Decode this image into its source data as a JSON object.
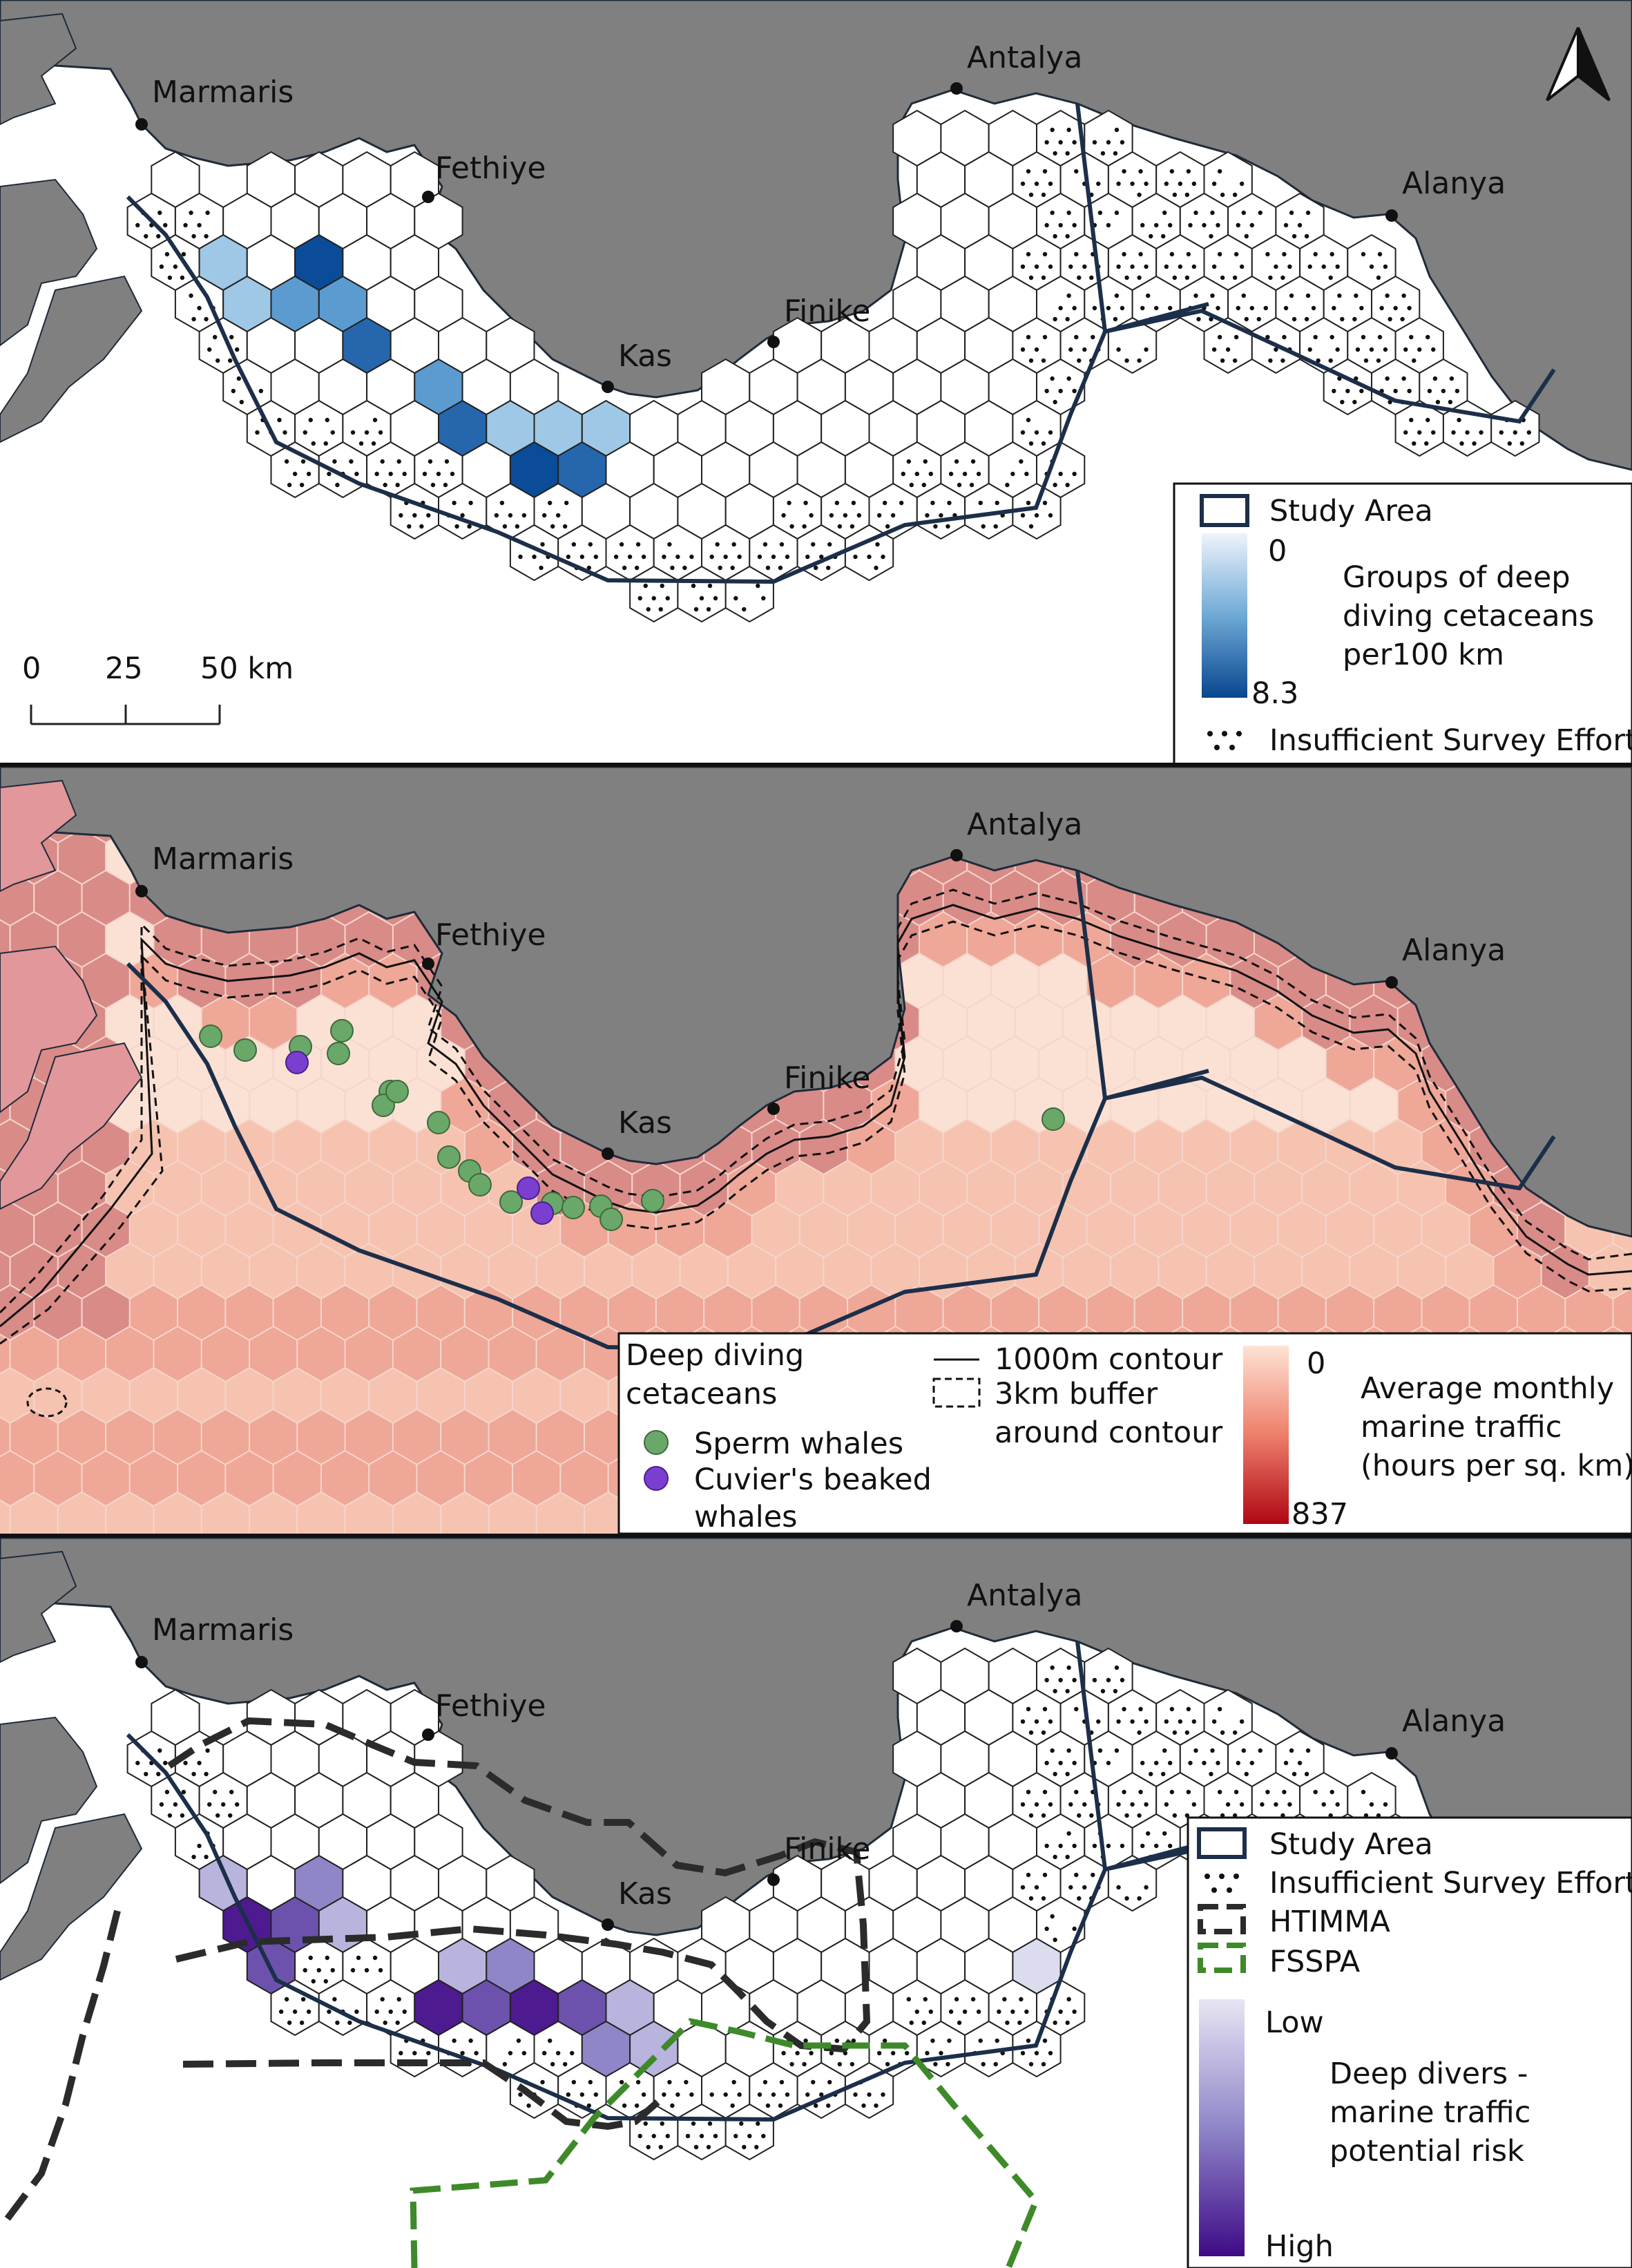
{
  "north_arrow": "north-arrow-icon",
  "cities": [
    {
      "id": "marmaris",
      "name": "Marmaris"
    },
    {
      "id": "fethiye",
      "name": "Fethiye"
    },
    {
      "id": "kas",
      "name": "Kas"
    },
    {
      "id": "finike",
      "name": "Finike"
    },
    {
      "id": "antalya",
      "name": "Antalya"
    },
    {
      "id": "alanya",
      "name": "Alanya"
    }
  ],
  "scale_bar": {
    "labels": [
      "0",
      "25",
      "50 km"
    ]
  },
  "panel1": {
    "legend": {
      "study_area": "Study Area",
      "min": "0",
      "max": "8.3",
      "title_lines": [
        "Groups of deep",
        "diving cetaceans",
        "per100 km"
      ],
      "insufficient": "Insufficient Survey Effort"
    }
  },
  "panel2": {
    "legend": {
      "points_title_lines": [
        "Deep diving",
        "cetaceans"
      ],
      "sperm": "Sperm whales",
      "cuvier_lines": [
        "Cuvier's beaked",
        "whales"
      ],
      "contour": "1000m contour",
      "buffer_lines": [
        "3km buffer",
        "around contour"
      ],
      "min": "0",
      "max": "837",
      "traffic_lines": [
        "Average monthly",
        "marine traffic",
        "(hours per sq. km)"
      ]
    }
  },
  "panel3": {
    "legend": {
      "study_area": "Study Area",
      "insufficient": "Insufficient Survey Effort",
      "htimma": "HTIMMA",
      "fsspa": "FSSPA",
      "low": "Low",
      "high": "High",
      "risk_lines": [
        "Deep divers -",
        "marine traffic",
        "potential risk"
      ]
    }
  },
  "colors": {
    "land": "#808080",
    "study_area": "#1c2f4a",
    "blue_ramp": [
      "#dbe8f5",
      "#9ec8e5",
      "#5b9bd0",
      "#2666ad",
      "#0a4c97"
    ],
    "traffic_ramp": [
      "#fbe1d4",
      "#f5c3b0",
      "#efa797",
      "#d98b88",
      "#b20a16"
    ],
    "sperm": "#6aa86a",
    "cuvier": "#7a3fcf",
    "risk_ramp": [
      "#dcdcef",
      "#b8b4dd",
      "#8f86c8",
      "#6c52ad",
      "#4d1a8f"
    ],
    "htimma": "#2b2b2b",
    "fsspa": "#3e8a2a"
  }
}
